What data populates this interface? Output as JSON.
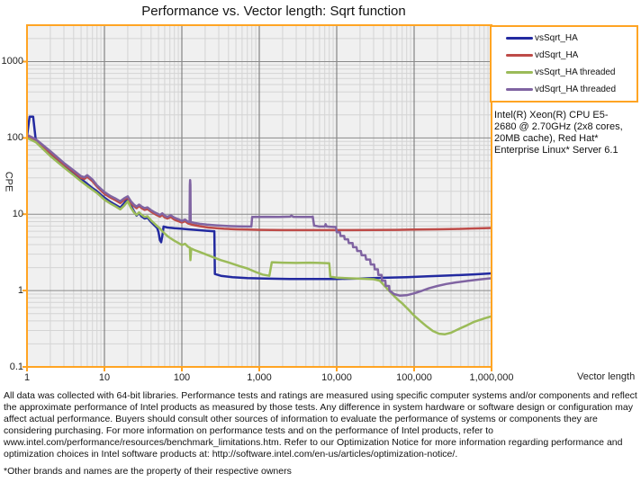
{
  "colors": {
    "accent_orange": "#FFA423",
    "plot_bg": "#F0F0F0",
    "grid_minor": "#D4D4D4",
    "grid_major_x": "#6E6E6E",
    "grid_major_y": "#8A8A8A",
    "text": "#111111"
  },
  "annotation": {
    "lines": [
      "Intel(R) Xeon(R) CPU E5-",
      "2680 @ 2.70GHz (2x8 cores,",
      "20MB cache), Red Hat*",
      "Enterprise Linux* Server 6.1"
    ]
  },
  "disclaimer": "All data was collected with 64-bit libraries. Performance tests and ratings are measured using specific computer systems and/or components and reflect the approximate performance of Intel products as measured by those tests. Any difference in system hardware or software design or configuration may affect actual performance. Buyers should consult other sources of information to evaluate the performance of systems or components they are considering purchasing. For more information on performance tests and on the performance of Intel products, refer to www.intel.com/performance/resources/benchmark_limitations.htm.  Refer to our Optimization Notice for more information regarding performance and optimization choices in Intel software products at: http://software.intel.com/en-us/articles/optimization-notice/.",
  "footnote": "*Other brands and names are the property of their respective owners",
  "chart_data": {
    "type": "line",
    "title": "Performance vs. Vector length: Sqrt function",
    "xlabel": "Vector length",
    "ylabel": "CPE",
    "x_scale": "log",
    "y_scale": "log",
    "xlim": [
      1,
      1000000
    ],
    "ylim": [
      0.1,
      3000
    ],
    "x_tick_values": [
      1,
      10,
      100,
      1000,
      10000,
      100000,
      1000000
    ],
    "x_tick_labels": [
      "1",
      "10",
      "100",
      "1,000",
      "10,000",
      "100,000",
      "1,000,000"
    ],
    "y_tick_values": [
      1000,
      100,
      10,
      1,
      0.1
    ],
    "y_tick_labels": [
      "1000",
      "100",
      "10",
      "1",
      "0.1"
    ],
    "grid": "major+minor log grid",
    "legend_position": "top-right",
    "series": [
      {
        "name": "vsSqrt_HA",
        "color": "#232AA0",
        "points": [
          [
            1,
            105
          ],
          [
            1.08,
            190
          ],
          [
            1.2,
            190
          ],
          [
            1.3,
            92
          ],
          [
            1.6,
            76
          ],
          [
            2,
            62
          ],
          [
            2.5,
            51
          ],
          [
            3,
            44
          ],
          [
            4,
            35
          ],
          [
            5,
            29
          ],
          [
            6,
            25
          ],
          [
            7,
            22
          ],
          [
            8,
            20
          ],
          [
            9,
            18
          ],
          [
            10,
            16.5
          ],
          [
            12,
            14.5
          ],
          [
            14,
            13.2
          ],
          [
            16,
            12.2
          ],
          [
            18,
            14
          ],
          [
            20,
            16
          ],
          [
            22,
            13
          ],
          [
            24,
            11
          ],
          [
            26,
            9.6
          ],
          [
            28,
            10.4
          ],
          [
            30,
            9.4
          ],
          [
            33,
            8.8
          ],
          [
            36,
            9
          ],
          [
            40,
            7.9
          ],
          [
            44,
            7.2
          ],
          [
            48,
            6.6
          ],
          [
            50,
            5.8
          ],
          [
            52,
            4.6
          ],
          [
            54,
            4.3
          ],
          [
            56,
            5.2
          ],
          [
            58,
            6.9
          ],
          [
            65,
            6.7
          ],
          [
            80,
            6.55
          ],
          [
            100,
            6.45
          ],
          [
            120,
            6.35
          ],
          [
            150,
            6.25
          ],
          [
            200,
            6.1
          ],
          [
            250,
            6
          ],
          [
            263,
            6
          ],
          [
            267,
            1.65
          ],
          [
            320,
            1.56
          ],
          [
            450,
            1.5
          ],
          [
            700,
            1.46
          ],
          [
            1200,
            1.44
          ],
          [
            2500,
            1.42
          ],
          [
            5000,
            1.42
          ],
          [
            10000,
            1.42
          ],
          [
            20000,
            1.44
          ],
          [
            40000,
            1.47
          ],
          [
            80000,
            1.5
          ],
          [
            150000,
            1.54
          ],
          [
            300000,
            1.58
          ],
          [
            600000,
            1.63
          ],
          [
            1000000,
            1.68
          ]
        ]
      },
      {
        "name": "vdSqrt_HA",
        "color": "#BE4B48",
        "points": [
          [
            1,
            106
          ],
          [
            1.3,
            92
          ],
          [
            2,
            64
          ],
          [
            3,
            45
          ],
          [
            4,
            36
          ],
          [
            5,
            30
          ],
          [
            5.5,
            29
          ],
          [
            6,
            31
          ],
          [
            7,
            27
          ],
          [
            8,
            23
          ],
          [
            10,
            18.5
          ],
          [
            12,
            16.5
          ],
          [
            14,
            15.2
          ],
          [
            16,
            14
          ],
          [
            18,
            15.5
          ],
          [
            20,
            16.5
          ],
          [
            22,
            14
          ],
          [
            24,
            12.8
          ],
          [
            26,
            12
          ],
          [
            28,
            12.8
          ],
          [
            30,
            12.1
          ],
          [
            33,
            11.4
          ],
          [
            36,
            11.7
          ],
          [
            40,
            10.8
          ],
          [
            44,
            10.2
          ],
          [
            48,
            9.7
          ],
          [
            52,
            9.3
          ],
          [
            56,
            9.8
          ],
          [
            60,
            9.1
          ],
          [
            65,
            8.8
          ],
          [
            72,
            9.2
          ],
          [
            80,
            8.5
          ],
          [
            90,
            8.1
          ],
          [
            100,
            7.8
          ],
          [
            110,
            8.1
          ],
          [
            120,
            7.6
          ],
          [
            135,
            7.3
          ],
          [
            150,
            7.15
          ],
          [
            180,
            6.9
          ],
          [
            220,
            6.7
          ],
          [
            280,
            6.55
          ],
          [
            350,
            6.45
          ],
          [
            500,
            6.35
          ],
          [
            700,
            6.3
          ],
          [
            1000,
            6.25
          ],
          [
            2000,
            6.2
          ],
          [
            4000,
            6.2
          ],
          [
            8000,
            6.2
          ],
          [
            15000,
            6.2
          ],
          [
            30000,
            6.22
          ],
          [
            60000,
            6.25
          ],
          [
            100000,
            6.3
          ],
          [
            200000,
            6.35
          ],
          [
            350000,
            6.42
          ],
          [
            550000,
            6.5
          ],
          [
            800000,
            6.58
          ],
          [
            1000000,
            6.62
          ]
        ]
      },
      {
        "name": "vsSqrt_HA threaded",
        "color": "#9BBB59",
        "points": [
          [
            1,
            100
          ],
          [
            1.3,
            88
          ],
          [
            2,
            58
          ],
          [
            3,
            41
          ],
          [
            4,
            32.5
          ],
          [
            5,
            27
          ],
          [
            6,
            23.5
          ],
          [
            8,
            19
          ],
          [
            10,
            15.5
          ],
          [
            12,
            13.8
          ],
          [
            14,
            12.6
          ],
          [
            16,
            11.6
          ],
          [
            18,
            13
          ],
          [
            20,
            14.8
          ],
          [
            22,
            12.2
          ],
          [
            24,
            10.6
          ],
          [
            26,
            9.8
          ],
          [
            28,
            10.6
          ],
          [
            30,
            9.9
          ],
          [
            33,
            9.2
          ],
          [
            36,
            9.4
          ],
          [
            40,
            8.3
          ],
          [
            44,
            7.6
          ],
          [
            48,
            7
          ],
          [
            52,
            6.5
          ],
          [
            56,
            6
          ],
          [
            60,
            5.6
          ],
          [
            65,
            5.2
          ],
          [
            70,
            4.9
          ],
          [
            80,
            4.5
          ],
          [
            90,
            4.2
          ],
          [
            100,
            3.95
          ],
          [
            110,
            4.1
          ],
          [
            120,
            3.75
          ],
          [
            127,
            3.65
          ],
          [
            129,
            2.5
          ],
          [
            132,
            3.55
          ],
          [
            145,
            3.4
          ],
          [
            170,
            3.2
          ],
          [
            200,
            3
          ],
          [
            250,
            2.75
          ],
          [
            320,
            2.5
          ],
          [
            420,
            2.3
          ],
          [
            550,
            2.1
          ],
          [
            700,
            1.95
          ],
          [
            900,
            1.75
          ],
          [
            1100,
            1.62
          ],
          [
            1350,
            1.56
          ],
          [
            1450,
            2.35
          ],
          [
            2000,
            2.32
          ],
          [
            3000,
            2.3
          ],
          [
            4500,
            2.32
          ],
          [
            6000,
            2.3
          ],
          [
            8000,
            2.28
          ],
          [
            8300,
            1.52
          ],
          [
            10000,
            1.48
          ],
          [
            14000,
            1.45
          ],
          [
            20000,
            1.43
          ],
          [
            30000,
            1.41
          ],
          [
            36000,
            1.35
          ],
          [
            40000,
            1.2
          ],
          [
            45000,
            1.05
          ],
          [
            52000,
            0.9
          ],
          [
            60000,
            0.78
          ],
          [
            70000,
            0.68
          ],
          [
            85000,
            0.56
          ],
          [
            100000,
            0.47
          ],
          [
            120000,
            0.4
          ],
          [
            145000,
            0.34
          ],
          [
            175000,
            0.295
          ],
          [
            210000,
            0.272
          ],
          [
            250000,
            0.268
          ],
          [
            300000,
            0.28
          ],
          [
            380000,
            0.315
          ],
          [
            480000,
            0.35
          ],
          [
            600000,
            0.39
          ],
          [
            800000,
            0.43
          ],
          [
            1000000,
            0.46
          ]
        ]
      },
      {
        "name": "vdSqrt_HA threaded",
        "color": "#8064A2",
        "points": [
          [
            1,
            110
          ],
          [
            1.3,
            96
          ],
          [
            2,
            67
          ],
          [
            3,
            47
          ],
          [
            4,
            37.5
          ],
          [
            5,
            31.5
          ],
          [
            5.5,
            30.5
          ],
          [
            6,
            32.5
          ],
          [
            7,
            28.5
          ],
          [
            8,
            24
          ],
          [
            10,
            19.5
          ],
          [
            12,
            17.3
          ],
          [
            14,
            16
          ],
          [
            16,
            14.8
          ],
          [
            18,
            16.2
          ],
          [
            20,
            17.2
          ],
          [
            22,
            14.8
          ],
          [
            24,
            13.4
          ],
          [
            26,
            12.6
          ],
          [
            28,
            13.4
          ],
          [
            30,
            12.7
          ],
          [
            33,
            12
          ],
          [
            36,
            12.3
          ],
          [
            40,
            11.3
          ],
          [
            44,
            10.7
          ],
          [
            48,
            10.2
          ],
          [
            52,
            9.8
          ],
          [
            56,
            10.3
          ],
          [
            60,
            9.6
          ],
          [
            65,
            9.2
          ],
          [
            72,
            9.7
          ],
          [
            80,
            9
          ],
          [
            90,
            8.6
          ],
          [
            100,
            8.2
          ],
          [
            110,
            8.5
          ],
          [
            120,
            8
          ],
          [
            126,
            7.9
          ],
          [
            127,
            24
          ],
          [
            128,
            28
          ],
          [
            129,
            24
          ],
          [
            130,
            7.9
          ],
          [
            145,
            7.7
          ],
          [
            170,
            7.5
          ],
          [
            210,
            7.3
          ],
          [
            280,
            7.15
          ],
          [
            400,
            7
          ],
          [
            550,
            6.95
          ],
          [
            700,
            6.9
          ],
          [
            790,
            6.9
          ],
          [
            810,
            9.2
          ],
          [
            1200,
            9.25
          ],
          [
            1800,
            9.2
          ],
          [
            2500,
            9.3
          ],
          [
            2600,
            9.6
          ],
          [
            2750,
            9.25
          ],
          [
            3500,
            9.2
          ],
          [
            4800,
            9.25
          ],
          [
            4900,
            9.3
          ],
          [
            5100,
            7.1
          ],
          [
            5800,
            6.95
          ],
          [
            7000,
            6.9
          ],
          [
            7200,
            7.4
          ],
          [
            7450,
            6.9
          ],
          [
            8500,
            6.85
          ],
          [
            9800,
            6.8
          ],
          [
            10000,
            5.8
          ],
          [
            11000,
            5.8
          ],
          [
            11200,
            5.2
          ],
          [
            12500,
            5.2
          ],
          [
            12700,
            4.7
          ],
          [
            14000,
            4.7
          ],
          [
            14300,
            4.2
          ],
          [
            16000,
            4.2
          ],
          [
            16300,
            3.7
          ],
          [
            18000,
            3.7
          ],
          [
            18400,
            3.3
          ],
          [
            20500,
            3.3
          ],
          [
            21000,
            2.9
          ],
          [
            23500,
            2.9
          ],
          [
            24000,
            2.55
          ],
          [
            27000,
            2.55
          ],
          [
            27500,
            2.2
          ],
          [
            30500,
            2.2
          ],
          [
            31000,
            1.9
          ],
          [
            34000,
            1.9
          ],
          [
            34500,
            1.6
          ],
          [
            38000,
            1.6
          ],
          [
            38500,
            1.35
          ],
          [
            42500,
            1.35
          ],
          [
            43000,
            1.15
          ],
          [
            47500,
            1.15
          ],
          [
            48000,
            1
          ],
          [
            55000,
            0.9
          ],
          [
            65000,
            0.86
          ],
          [
            80000,
            0.87
          ],
          [
            100000,
            0.92
          ],
          [
            125000,
            0.99
          ],
          [
            155000,
            1.07
          ],
          [
            200000,
            1.15
          ],
          [
            260000,
            1.22
          ],
          [
            350000,
            1.28
          ],
          [
            500000,
            1.34
          ],
          [
            700000,
            1.4
          ],
          [
            1000000,
            1.45
          ]
        ]
      }
    ]
  }
}
